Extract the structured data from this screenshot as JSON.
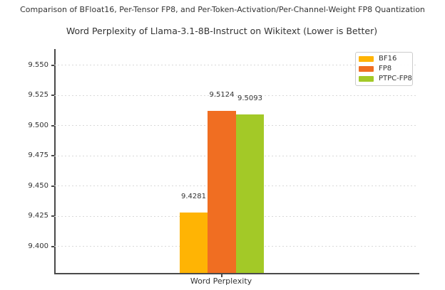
{
  "figure": {
    "suptitle": "Comparison of BFloat16, Per-Tensor FP8, and Per-Token-Activation/Per-Channel-Weight FP8 Quantization",
    "background": "#ffffff"
  },
  "chart_data": {
    "type": "bar",
    "title": "Word Perplexity of Llama-3.1-8B-Instruct on Wikitext (Lower is Better)",
    "categories": [
      "Word Perplexity"
    ],
    "series": [
      {
        "name": "BF16",
        "values": [
          9.4281
        ],
        "value_label": "9.4281",
        "color": "#FFB404"
      },
      {
        "name": "FP8",
        "values": [
          9.5124
        ],
        "value_label": "9.5124",
        "color": "#F06E22"
      },
      {
        "name": "PTPC-FP8",
        "values": [
          9.5093
        ],
        "value_label": "9.5093",
        "color": "#A3C927"
      }
    ],
    "xlabel": "Word Perplexity",
    "ylabel": "",
    "ylim": [
      9.378,
      9.5635
    ],
    "yticks": [
      "9.550",
      "9.525",
      "9.500",
      "9.475",
      "9.450",
      "9.425",
      "9.400"
    ],
    "grid": true,
    "grid_style": "dashed",
    "legend": {
      "position": "upper right",
      "entries": [
        "BF16",
        "FP8",
        "PTPC-FP8"
      ]
    },
    "colors": {
      "axis": "#4a4a4a",
      "grid": "#d9d9d9",
      "text": "#333333"
    }
  }
}
